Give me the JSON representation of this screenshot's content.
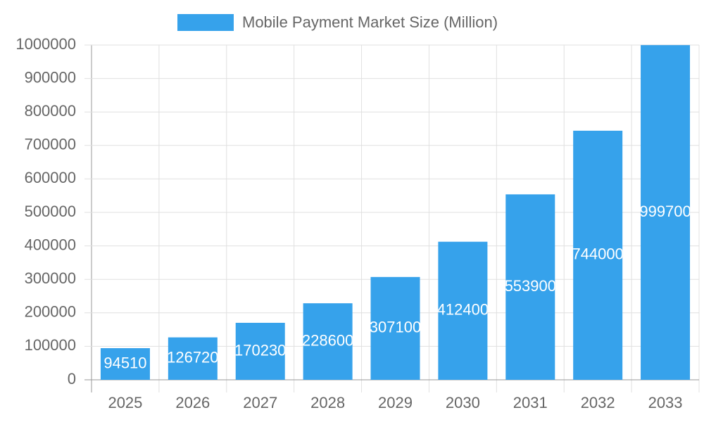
{
  "chart_data": {
    "type": "bar",
    "categories": [
      "2025",
      "2026",
      "2027",
      "2028",
      "2029",
      "2030",
      "2031",
      "2032",
      "2033"
    ],
    "series": [
      {
        "name": "Mobile Payment Market Size (Million)",
        "color": "#36A2EB",
        "values": [
          94510,
          126720,
          170230,
          228600,
          307100,
          412400,
          553900,
          744000,
          999700
        ]
      }
    ],
    "ylim": [
      0,
      1000000
    ],
    "yticks": [
      0,
      100000,
      200000,
      300000,
      400000,
      500000,
      600000,
      700000,
      800000,
      900000,
      1000000
    ],
    "grid": true,
    "legend": "top",
    "data_labels": true
  }
}
